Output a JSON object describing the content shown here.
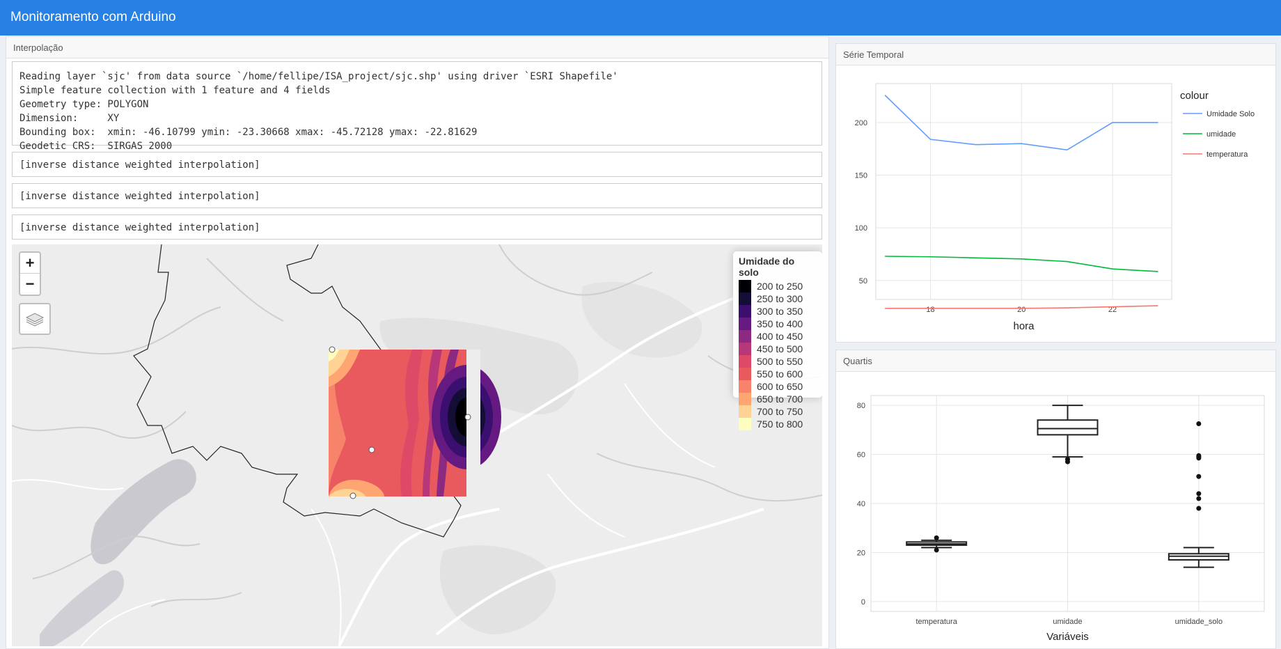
{
  "app": {
    "title": "Monitoramento com Arduino"
  },
  "interp": {
    "title": "Interpolação",
    "output1": "Reading layer `sjc' from data source `/home/fellipe/ISA_project/sjc.shp' using driver `ESRI Shapefile'\nSimple feature collection with 1 feature and 4 fields\nGeometry type: POLYGON\nDimension:     XY\nBounding box:  xmin: -46.10799 ymin: -23.30668 xmax: -45.72128 ymax: -22.81629\nGeodetic CRS:  SIRGAS 2000",
    "output2": "[inverse distance weighted interpolation]",
    "output3": "[inverse distance weighted interpolation]",
    "output4": "[inverse distance weighted interpolation]"
  },
  "map": {
    "zoom_in": "+",
    "zoom_out": "−",
    "legend": {
      "title": "Umidade do solo",
      "items": [
        {
          "label": "200 to 250",
          "color": "#000004"
        },
        {
          "label": "250 to 300",
          "color": "#140e36"
        },
        {
          "label": "300 to 350",
          "color": "#3b0f70"
        },
        {
          "label": "350 to 400",
          "color": "#641a80"
        },
        {
          "label": "400 to 450",
          "color": "#8c2981"
        },
        {
          "label": "450 to 500",
          "color": "#b73779"
        },
        {
          "label": "500 to 550",
          "color": "#de4968"
        },
        {
          "label": "550 to 600",
          "color": "#e85a5d"
        },
        {
          "label": "600 to 650",
          "color": "#f7836a"
        },
        {
          "label": "650 to 700",
          "color": "#fea572"
        },
        {
          "label": "700 to 750",
          "color": "#fed395"
        },
        {
          "label": "750 to 800",
          "color": "#fcfdbf"
        }
      ]
    }
  },
  "serie": {
    "title": "Série Temporal",
    "legend_title": "colour",
    "xlabel": "hora"
  },
  "quartis": {
    "title": "Quartis",
    "xlabel": "Variáveis"
  },
  "chart_data": [
    {
      "type": "line",
      "title": "",
      "xlabel": "hora",
      "ylabel": "",
      "x": [
        17,
        18,
        19,
        20,
        21,
        22,
        23
      ],
      "xlim": [
        16.8,
        23.3
      ],
      "ylim": [
        32,
        237
      ],
      "xticks": [
        18,
        20,
        22
      ],
      "yticks": [
        50,
        100,
        150,
        200
      ],
      "legend_title": "colour",
      "legend_position": "right",
      "grid": true,
      "series": [
        {
          "name": "Umidade Solo",
          "color": "#619cff",
          "values": [
            226,
            184,
            179,
            180,
            174,
            200,
            200
          ]
        },
        {
          "name": "umidade",
          "color": "#00ba38",
          "values": [
            73,
            72.5,
            71.5,
            70.5,
            68,
            61,
            58.5
          ]
        },
        {
          "name": "temperatura",
          "color": "#f8766d",
          "values": [
            23.5,
            23.5,
            23.5,
            23.5,
            24,
            25,
            26
          ]
        }
      ]
    },
    {
      "type": "box",
      "title": "",
      "xlabel": "Variáveis",
      "ylabel": "",
      "categories": [
        "temperatura",
        "umidade",
        "umidade_solo"
      ],
      "ylim": [
        -4,
        84
      ],
      "yticks": [
        0,
        20,
        40,
        60,
        80
      ],
      "grid": true,
      "boxes": [
        {
          "min": 22,
          "q1": 23,
          "median": 23.5,
          "q3": 24.3,
          "max": 25,
          "outliers": [
            26,
            21
          ]
        },
        {
          "min": 59,
          "q1": 68,
          "median": 70.5,
          "q3": 74,
          "max": 80,
          "outliers": [
            58,
            57
          ]
        },
        {
          "min": 14,
          "q1": 17,
          "median": 18.5,
          "q3": 19.5,
          "max": 22,
          "outliers": [
            72.5,
            59.5,
            59,
            58.5,
            51,
            44,
            42,
            38
          ]
        }
      ]
    }
  ]
}
